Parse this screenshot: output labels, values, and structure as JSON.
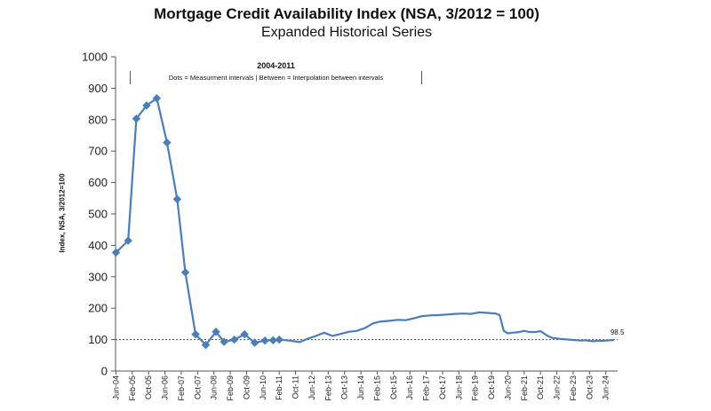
{
  "chart_data": {
    "type": "line",
    "title": "Mortgage Credit Availability Index (NSA, 3/2012 = 100)",
    "subtitle": "Expanded Historical Series",
    "ylabel": "Index, NSA, 3/2012=100",
    "xlabel": "",
    "ylim": [
      0,
      1000
    ],
    "yticks": [
      0,
      100,
      200,
      300,
      400,
      500,
      600,
      700,
      800,
      900,
      1000
    ],
    "xlim": [
      2004.4,
      2024.9
    ],
    "xtick_labels": [
      {
        "label": "Jun-04",
        "x": 2004.417
      },
      {
        "label": "Feb-05",
        "x": 2005.083
      },
      {
        "label": "Oct-05",
        "x": 2005.75
      },
      {
        "label": "Jun-06",
        "x": 2006.417
      },
      {
        "label": "Feb-07",
        "x": 2007.083
      },
      {
        "label": "Oct-07",
        "x": 2007.75
      },
      {
        "label": "Jun-08",
        "x": 2008.417
      },
      {
        "label": "Feb-09",
        "x": 2009.083
      },
      {
        "label": "Oct-09",
        "x": 2009.75
      },
      {
        "label": "Jun-10",
        "x": 2010.417
      },
      {
        "label": "Feb-11",
        "x": 2011.083
      },
      {
        "label": "Oct-11",
        "x": 2011.75
      },
      {
        "label": "Jun-12",
        "x": 2012.417
      },
      {
        "label": "Feb-13",
        "x": 2013.083
      },
      {
        "label": "Oct-13",
        "x": 2013.75
      },
      {
        "label": "Jun-14",
        "x": 2014.417
      },
      {
        "label": "Feb-15",
        "x": 2015.083
      },
      {
        "label": "Oct-15",
        "x": 2015.75
      },
      {
        "label": "Jun-16",
        "x": 2016.417
      },
      {
        "label": "Feb-17",
        "x": 2017.083
      },
      {
        "label": "Oct-17",
        "x": 2017.75
      },
      {
        "label": "Jun-18",
        "x": 2018.417
      },
      {
        "label": "Feb-19",
        "x": 2019.083
      },
      {
        "label": "Oct-19",
        "x": 2019.75
      },
      {
        "label": "Jun-20",
        "x": 2020.417
      },
      {
        "label": "Feb-21",
        "x": 2021.083
      },
      {
        "label": "Oct-21",
        "x": 2021.75
      },
      {
        "label": "Jun-22",
        "x": 2022.417
      },
      {
        "label": "Feb-23",
        "x": 2023.083
      },
      {
        "label": "Oct-23",
        "x": 2023.75
      },
      {
        "label": "Jun-24",
        "x": 2024.417
      }
    ],
    "series_color": "#4a7ebb",
    "series": [
      {
        "name": "",
        "x": [
          2004.417,
          2004.917,
          2005.25,
          2005.667,
          2006.083,
          2006.5,
          2006.917,
          2007.25,
          2007.667,
          2008.083,
          2008.5,
          2008.833,
          2009.25,
          2009.667,
          2010.083,
          2010.5,
          2010.833,
          2011.083,
          2011.5,
          2011.917,
          2012.25,
          2012.583,
          2012.917,
          2013.25,
          2013.583,
          2013.917,
          2014.25,
          2014.583,
          2014.917,
          2015.25,
          2015.583,
          2015.917,
          2016.25,
          2016.583,
          2016.917,
          2017.25,
          2017.583,
          2017.917,
          2018.25,
          2018.583,
          2018.917,
          2019.25,
          2019.583,
          2019.917,
          2020.083,
          2020.25,
          2020.417,
          2020.583,
          2020.75,
          2020.917,
          2021.083,
          2021.25,
          2021.417,
          2021.583,
          2021.75,
          2021.917,
          2022.083,
          2022.25,
          2022.417,
          2022.583,
          2022.75,
          2022.917,
          2023.083,
          2023.25,
          2023.417,
          2023.583,
          2023.75,
          2023.917,
          2024.083,
          2024.25,
          2024.417,
          2024.583,
          2024.75
        ],
        "values": [
          377,
          415,
          803,
          845,
          868,
          727,
          547,
          314,
          117,
          83,
          125,
          93,
          100,
          117,
          90,
          97,
          98,
          100,
          97,
          92,
          103,
          112,
          122,
          112,
          118,
          125,
          128,
          137,
          152,
          158,
          160,
          163,
          162,
          168,
          175,
          177,
          178,
          180,
          182,
          183,
          182,
          187,
          185,
          183,
          178,
          128,
          120,
          122,
          123,
          125,
          128,
          125,
          124,
          125,
          127,
          118,
          110,
          105,
          104,
          102,
          101,
          100,
          99,
          98,
          97,
          98,
          96,
          95,
          97,
          96,
          97,
          98,
          98.5
        ],
        "markers_x": [
          2004.417,
          2004.917,
          2005.25,
          2005.667,
          2006.083,
          2006.5,
          2006.917,
          2007.25,
          2007.667,
          2008.083,
          2008.5,
          2008.833,
          2009.25,
          2009.667,
          2010.083,
          2010.5,
          2010.833,
          2011.083
        ]
      }
    ],
    "reference_line": {
      "y": 100,
      "style": "dotted"
    },
    "annotation": {
      "title": "2004-2011",
      "text": "Dots = Measurment intervals  |  Between = Interpolation between intervals",
      "x_start": 2005.0,
      "x_end": 2016.9
    },
    "end_label": "98.5",
    "grid": false,
    "legend": "none"
  }
}
